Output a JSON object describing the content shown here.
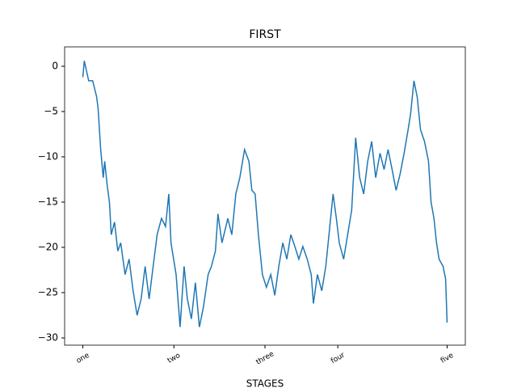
{
  "chart_data": {
    "type": "line",
    "title": "FIRST",
    "x_label": "STAGES",
    "xlim": [
      -50,
      1050
    ],
    "ylim": [
      -30.8,
      2.14
    ],
    "xticks": [
      {
        "value": 0,
        "label": "one"
      },
      {
        "value": 250,
        "label": "two"
      },
      {
        "value": 500,
        "label": "three"
      },
      {
        "value": 700,
        "label": "four"
      },
      {
        "value": 1000,
        "label": "five"
      }
    ],
    "yticks": [
      0,
      {
        "value": -5,
        "label": "−5"
      },
      {
        "value": -10,
        "label": "−10"
      },
      {
        "value": -15,
        "label": "−15"
      },
      {
        "value": -20,
        "label": "−20"
      },
      {
        "value": -25,
        "label": "−25"
      },
      {
        "value": -30,
        "label": "−30"
      }
    ],
    "series": [
      {
        "color": "#1f77b4",
        "x": [
          0,
          4,
          16,
          27,
          38,
          42,
          49,
          56,
          60,
          67,
          73,
          78,
          87,
          96,
          104,
          116,
          127,
          138,
          149,
          160,
          171,
          182,
          193,
          204,
          216,
          227,
          236,
          242,
          256,
          267,
          278,
          287,
          298,
          309,
          320,
          331,
          344,
          353,
          364,
          371,
          382,
          398,
          409,
          420,
          431,
          444,
          456,
          464,
          473,
          482,
          493,
          504,
          516,
          527,
          538,
          549,
          560,
          571,
          582,
          593,
          604,
          616,
          627,
          633,
          644,
          656,
          667,
          678,
          687,
          696,
          704,
          716,
          727,
          738,
          749,
          760,
          771,
          782,
          793,
          804,
          816,
          827,
          838,
          849,
          860,
          871,
          882,
          893,
          900,
          909,
          918,
          927,
          938,
          949,
          956,
          964,
          971,
          978,
          989,
          996,
          1000
        ],
        "values": [
          -1.2,
          0.6,
          -1.6,
          -1.6,
          -3.4,
          -4.7,
          -9.2,
          -12.3,
          -10.5,
          -13.2,
          -15,
          -18.6,
          -17.2,
          -20.4,
          -19.5,
          -23,
          -21.3,
          -24.8,
          -27.5,
          -25.7,
          -22.1,
          -25.7,
          -22.1,
          -18.6,
          -16.8,
          -17.7,
          -14.1,
          -19.5,
          -23,
          -28.8,
          -22.1,
          -25.7,
          -27.9,
          -23.9,
          -28.8,
          -26.6,
          -23,
          -22.1,
          -20.4,
          -16.3,
          -19.5,
          -16.8,
          -18.6,
          -14.1,
          -12.3,
          -9.2,
          -10.5,
          -13.7,
          -14.1,
          -18.6,
          -23,
          -24.4,
          -23,
          -25.3,
          -22.1,
          -19.5,
          -21.3,
          -18.6,
          -19.9,
          -21.3,
          -19.9,
          -21.3,
          -23,
          -26.2,
          -23,
          -24.8,
          -22.1,
          -17.7,
          -14.1,
          -16.8,
          -19.5,
          -21.3,
          -18.6,
          -15.9,
          -7.9,
          -12.3,
          -14.1,
          -10.5,
          -8.3,
          -12.3,
          -9.6,
          -11.4,
          -9.2,
          -11.4,
          -13.7,
          -11.9,
          -9.6,
          -7,
          -5.2,
          -1.6,
          -3.4,
          -7,
          -8.3,
          -10.5,
          -15,
          -16.8,
          -19.5,
          -21.3,
          -22.1,
          -23.5,
          -28.3
        ]
      }
    ]
  }
}
